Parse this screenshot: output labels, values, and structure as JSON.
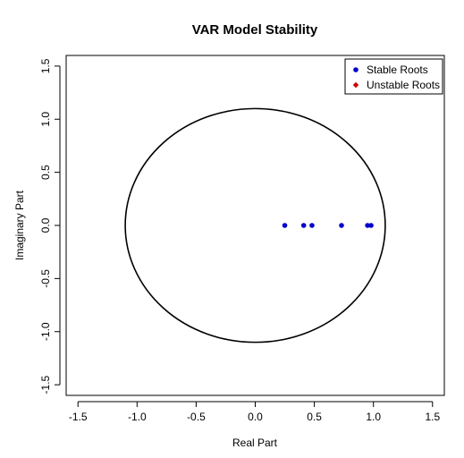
{
  "chart_data": {
    "type": "scatter",
    "title": "VAR Model Stability",
    "xlabel": "Real Part",
    "ylabel": "Imaginary Part",
    "xlim": [
      -1.6,
      1.6
    ],
    "ylim": [
      -1.6,
      1.6
    ],
    "xticks": [
      -1.5,
      -1.0,
      -0.5,
      0.0,
      0.5,
      1.0,
      1.5
    ],
    "yticks": [
      -1.5,
      -1.0,
      -0.5,
      0.0,
      0.5,
      1.0,
      1.5
    ],
    "grid": false,
    "legend_position": "top-right",
    "reference_circle": {
      "center": [
        0,
        0
      ],
      "radius": 1.1
    },
    "series": [
      {
        "name": "Stable Roots",
        "color": "#0000cd",
        "x": [
          0.25,
          0.41,
          0.48,
          0.73,
          0.95,
          0.98
        ],
        "y": [
          0,
          0,
          0,
          0,
          0,
          0
        ]
      },
      {
        "name": "Unstable Roots",
        "color": "#cd0000",
        "x": [],
        "y": []
      }
    ]
  }
}
